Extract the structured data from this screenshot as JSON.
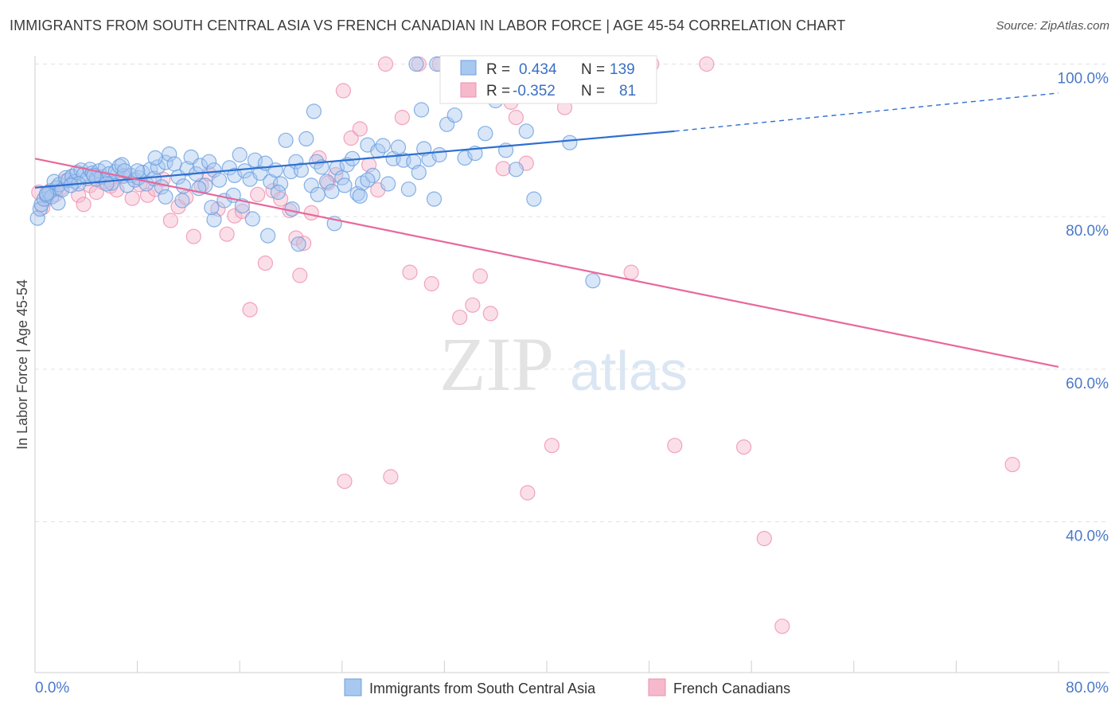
{
  "header": {
    "title": "IMMIGRANTS FROM SOUTH CENTRAL ASIA VS FRENCH CANADIAN IN LABOR FORCE | AGE 45-54 CORRELATION CHART",
    "source": "Source: ZipAtlas.com"
  },
  "watermark": {
    "zip": "ZIP",
    "atlas": "atlas"
  },
  "stats": [
    {
      "r_label": "R =",
      "r_value": "0.434",
      "n_label": "N =",
      "n_value": "139",
      "color": "#a9c8ef"
    },
    {
      "r_label": "R =",
      "r_value": "-0.352",
      "n_label": "N =",
      "n_value": "81",
      "color": "#f6b9cc"
    }
  ],
  "legend": [
    {
      "label": "Immigrants from South Central Asia",
      "color": "#a9c8ef"
    },
    {
      "label": "French Canadians",
      "color": "#f6b9cc"
    }
  ],
  "chart_data": {
    "type": "scatter",
    "title": "IMMIGRANTS FROM SOUTH CENTRAL ASIA VS FRENCH CANADIAN IN LABOR FORCE | AGE 45-54 CORRELATION CHART",
    "xlabel": "",
    "ylabel": "In Labor Force | Age 45-54",
    "xlim": [
      0,
      80
    ],
    "ylim": [
      20,
      104
    ],
    "x_tick_labels": [
      "0.0%",
      "80.0%"
    ],
    "y_ticks": [
      40,
      60,
      80,
      100
    ],
    "y_tick_labels": [
      "40.0%",
      "60.0%",
      "80.0%",
      "100.0%"
    ],
    "grid": true,
    "legend_position": "bottom",
    "series": [
      {
        "name": "Immigrants from South Central Asia",
        "color": "#6a9fe0",
        "fill": "#a9c8ef",
        "trend": {
          "x": [
            0,
            50
          ],
          "y": [
            83.8,
            91.2
          ],
          "dashed_to": [
            80,
            96.2
          ],
          "color": "#2d6fd0"
        },
        "points": [
          [
            0.2,
            79.8
          ],
          [
            0.4,
            81.0
          ],
          [
            0.5,
            81.6
          ],
          [
            0.7,
            82.3
          ],
          [
            0.9,
            82.8
          ],
          [
            1.1,
            83.2
          ],
          [
            1.3,
            82.6
          ],
          [
            1.5,
            84.6
          ],
          [
            1.7,
            83.8
          ],
          [
            1.9,
            84.2
          ],
          [
            2.1,
            83.5
          ],
          [
            2.4,
            85.1
          ],
          [
            2.6,
            84.8
          ],
          [
            2.9,
            85.3
          ],
          [
            3.1,
            84.6
          ],
          [
            3.3,
            85.8
          ],
          [
            3.6,
            86.1
          ],
          [
            3.8,
            85.5
          ],
          [
            4.1,
            85.0
          ],
          [
            4.3,
            86.2
          ],
          [
            4.5,
            85.7
          ],
          [
            4.8,
            84.9
          ],
          [
            5.0,
            86.0
          ],
          [
            5.2,
            85.2
          ],
          [
            5.5,
            86.4
          ],
          [
            5.8,
            85.6
          ],
          [
            6.0,
            84.4
          ],
          [
            6.3,
            85.9
          ],
          [
            6.6,
            86.6
          ],
          [
            6.9,
            85.3
          ],
          [
            7.2,
            84.1
          ],
          [
            7.5,
            85.4
          ],
          [
            7.8,
            84.8
          ],
          [
            8.1,
            85.1
          ],
          [
            8.4,
            85.8
          ],
          [
            8.7,
            84.3
          ],
          [
            9.0,
            86.2
          ],
          [
            9.3,
            85.0
          ],
          [
            9.6,
            86.5
          ],
          [
            9.9,
            83.9
          ],
          [
            10.2,
            87.1
          ],
          [
            10.5,
            88.2
          ],
          [
            10.9,
            86.9
          ],
          [
            11.2,
            85.2
          ],
          [
            11.6,
            84.0
          ],
          [
            11.9,
            86.3
          ],
          [
            12.2,
            87.8
          ],
          [
            12.6,
            85.6
          ],
          [
            12.9,
            86.7
          ],
          [
            13.3,
            84.1
          ],
          [
            13.6,
            87.2
          ],
          [
            14.0,
            86.1
          ],
          [
            14.4,
            84.8
          ],
          [
            14.8,
            82.1
          ],
          [
            15.2,
            86.4
          ],
          [
            15.6,
            85.4
          ],
          [
            16.0,
            88.1
          ],
          [
            16.4,
            86.0
          ],
          [
            16.8,
            84.9
          ],
          [
            17.2,
            87.4
          ],
          [
            17.6,
            85.7
          ],
          [
            18.0,
            87.0
          ],
          [
            18.4,
            84.6
          ],
          [
            18.8,
            86.1
          ],
          [
            19.2,
            84.3
          ],
          [
            19.6,
            90.0
          ],
          [
            20.0,
            85.9
          ],
          [
            20.4,
            87.2
          ],
          [
            20.8,
            86.1
          ],
          [
            21.2,
            90.2
          ],
          [
            21.6,
            84.1
          ],
          [
            22.0,
            87.2
          ],
          [
            22.4,
            86.5
          ],
          [
            22.8,
            84.6
          ],
          [
            23.2,
            83.3
          ],
          [
            23.6,
            86.4
          ],
          [
            24.0,
            85.1
          ],
          [
            24.4,
            86.8
          ],
          [
            24.8,
            87.6
          ],
          [
            25.2,
            83.0
          ],
          [
            25.6,
            84.4
          ],
          [
            26.0,
            89.4
          ],
          [
            26.4,
            85.4
          ],
          [
            26.8,
            88.6
          ],
          [
            27.2,
            89.3
          ],
          [
            27.6,
            84.3
          ],
          [
            28.0,
            87.6
          ],
          [
            28.4,
            89.1
          ],
          [
            28.8,
            87.4
          ],
          [
            29.2,
            83.6
          ],
          [
            29.6,
            87.2
          ],
          [
            30.0,
            85.8
          ],
          [
            30.4,
            88.9
          ],
          [
            30.8,
            87.5
          ],
          [
            31.2,
            82.3
          ],
          [
            31.6,
            88.1
          ],
          [
            32.2,
            92.1
          ],
          [
            32.8,
            93.3
          ],
          [
            33.6,
            87.7
          ],
          [
            34.4,
            88.3
          ],
          [
            35.2,
            90.9
          ],
          [
            36.0,
            95.2
          ],
          [
            36.8,
            88.7
          ],
          [
            37.6,
            86.2
          ],
          [
            38.4,
            91.2
          ],
          [
            39.0,
            82.3
          ],
          [
            41.8,
            89.7
          ],
          [
            43.6,
            71.6
          ],
          [
            29.8,
            100.0
          ],
          [
            31.4,
            100.0
          ],
          [
            30.2,
            94.0
          ],
          [
            21.8,
            93.8
          ],
          [
            25.4,
            82.7
          ],
          [
            18.2,
            77.5
          ],
          [
            20.6,
            76.4
          ],
          [
            23.4,
            79.1
          ],
          [
            17.0,
            79.7
          ],
          [
            14.0,
            79.6
          ],
          [
            11.5,
            82.1
          ],
          [
            10.2,
            82.6
          ],
          [
            12.8,
            83.7
          ],
          [
            13.8,
            81.2
          ],
          [
            15.5,
            82.8
          ],
          [
            16.2,
            81.4
          ],
          [
            19.0,
            83.2
          ],
          [
            20.1,
            81.0
          ],
          [
            22.1,
            82.9
          ],
          [
            24.2,
            84.1
          ],
          [
            26.0,
            84.8
          ],
          [
            1.8,
            81.8
          ],
          [
            3.4,
            84.3
          ],
          [
            6.8,
            86.8
          ],
          [
            9.4,
            87.7
          ],
          [
            8.0,
            86.0
          ],
          [
            5.6,
            84.3
          ],
          [
            4.6,
            85.4
          ],
          [
            2.8,
            84.1
          ],
          [
            0.9,
            83.0
          ],
          [
            7.0,
            86.0
          ]
        ]
      },
      {
        "name": "French Canadians",
        "color": "#ef8fae",
        "fill": "#f6b9cc",
        "trend": {
          "x": [
            0,
            80
          ],
          "y": [
            87.6,
            60.3
          ],
          "color": "#e8689a"
        },
        "points": [
          [
            0.3,
            83.2
          ],
          [
            0.6,
            81.2
          ],
          [
            0.9,
            82.3
          ],
          [
            1.2,
            83.4
          ],
          [
            1.6,
            82.9
          ],
          [
            2.0,
            83.7
          ],
          [
            2.4,
            84.7
          ],
          [
            2.9,
            85.2
          ],
          [
            3.4,
            82.8
          ],
          [
            3.8,
            81.6
          ],
          [
            4.3,
            84.1
          ],
          [
            4.8,
            83.2
          ],
          [
            5.3,
            84.5
          ],
          [
            5.9,
            84.0
          ],
          [
            6.4,
            83.5
          ],
          [
            7.0,
            85.4
          ],
          [
            7.6,
            82.4
          ],
          [
            8.2,
            84.2
          ],
          [
            8.8,
            82.8
          ],
          [
            9.4,
            83.6
          ],
          [
            10.0,
            84.9
          ],
          [
            10.6,
            79.5
          ],
          [
            11.2,
            81.3
          ],
          [
            11.8,
            82.5
          ],
          [
            12.4,
            77.4
          ],
          [
            13.0,
            84.1
          ],
          [
            13.6,
            85.6
          ],
          [
            14.3,
            81.0
          ],
          [
            15.0,
            77.7
          ],
          [
            15.6,
            80.1
          ],
          [
            16.2,
            80.7
          ],
          [
            16.8,
            67.8
          ],
          [
            17.4,
            82.9
          ],
          [
            18.0,
            73.9
          ],
          [
            18.6,
            83.4
          ],
          [
            19.2,
            82.3
          ],
          [
            19.9,
            80.8
          ],
          [
            20.4,
            77.2
          ],
          [
            20.7,
            72.3
          ],
          [
            21.0,
            76.5
          ],
          [
            21.6,
            80.5
          ],
          [
            22.2,
            87.7
          ],
          [
            22.9,
            84.4
          ],
          [
            23.5,
            85.5
          ],
          [
            24.1,
            96.5
          ],
          [
            24.7,
            90.3
          ],
          [
            25.4,
            91.5
          ],
          [
            26.1,
            86.8
          ],
          [
            26.8,
            83.5
          ],
          [
            27.4,
            100.0
          ],
          [
            28.7,
            93.0
          ],
          [
            29.3,
            72.7
          ],
          [
            30.0,
            100.0
          ],
          [
            31.0,
            71.2
          ],
          [
            31.6,
            100.0
          ],
          [
            32.6,
            100.0
          ],
          [
            33.2,
            66.8
          ],
          [
            34.2,
            68.4
          ],
          [
            34.8,
            72.2
          ],
          [
            35.6,
            67.3
          ],
          [
            36.0,
            100.0
          ],
          [
            36.6,
            86.3
          ],
          [
            37.6,
            93.0
          ],
          [
            38.4,
            87.0
          ],
          [
            39.6,
            100.0
          ],
          [
            40.4,
            50.0
          ],
          [
            41.4,
            94.3
          ],
          [
            41.6,
            100.0
          ],
          [
            44.6,
            100.0
          ],
          [
            46.6,
            72.7
          ],
          [
            48.2,
            100.0
          ],
          [
            50.0,
            50.0
          ],
          [
            52.5,
            100.0
          ],
          [
            55.4,
            49.8
          ],
          [
            57.0,
            37.8
          ],
          [
            58.4,
            26.3
          ],
          [
            76.4,
            47.5
          ],
          [
            24.2,
            45.3
          ],
          [
            27.8,
            45.9
          ],
          [
            38.5,
            43.8
          ],
          [
            37.2,
            95.0
          ]
        ]
      }
    ]
  }
}
